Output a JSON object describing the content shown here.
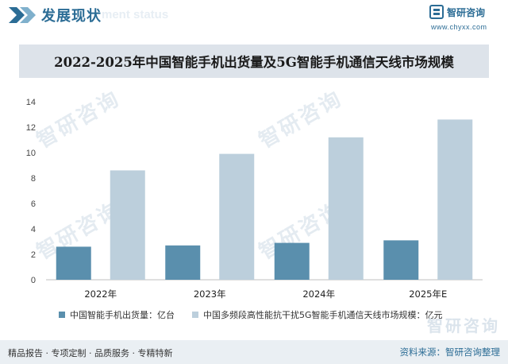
{
  "header": {
    "section_title": "发展现状",
    "section_subtitle": "ment status",
    "brand_name": "智研咨询",
    "brand_url": "www.chyxx.com"
  },
  "watermark_text": "智研咨询",
  "footer": {
    "tags": "精品报告 · 专项定制 · 品质服务 · 专精特新",
    "source": "资料来源：智研咨询整理"
  },
  "colors": {
    "series1": "#5a8fad",
    "series2": "#bccfdc",
    "accent": "#2b6c95"
  },
  "chart_data": {
    "type": "bar",
    "title": "2022-2025年中国智能手机出货量及5G智能手机通信天线市场规模",
    "categories": [
      "2022年",
      "2023年",
      "2024年",
      "2025年E"
    ],
    "series": [
      {
        "name": "中国智能手机出货量：亿台",
        "values": [
          2.6,
          2.7,
          2.9,
          3.1
        ]
      },
      {
        "name": "中国多频段高性能抗干扰5G智能手机通信天线市场规模：亿元",
        "values": [
          8.6,
          9.9,
          11.2,
          12.6
        ]
      }
    ],
    "ylim": [
      0,
      14
    ],
    "yticks": [
      0,
      2,
      4,
      6,
      8,
      10,
      12,
      14
    ],
    "xlabel": "",
    "ylabel": "",
    "legend_position": "bottom",
    "grid": false
  }
}
